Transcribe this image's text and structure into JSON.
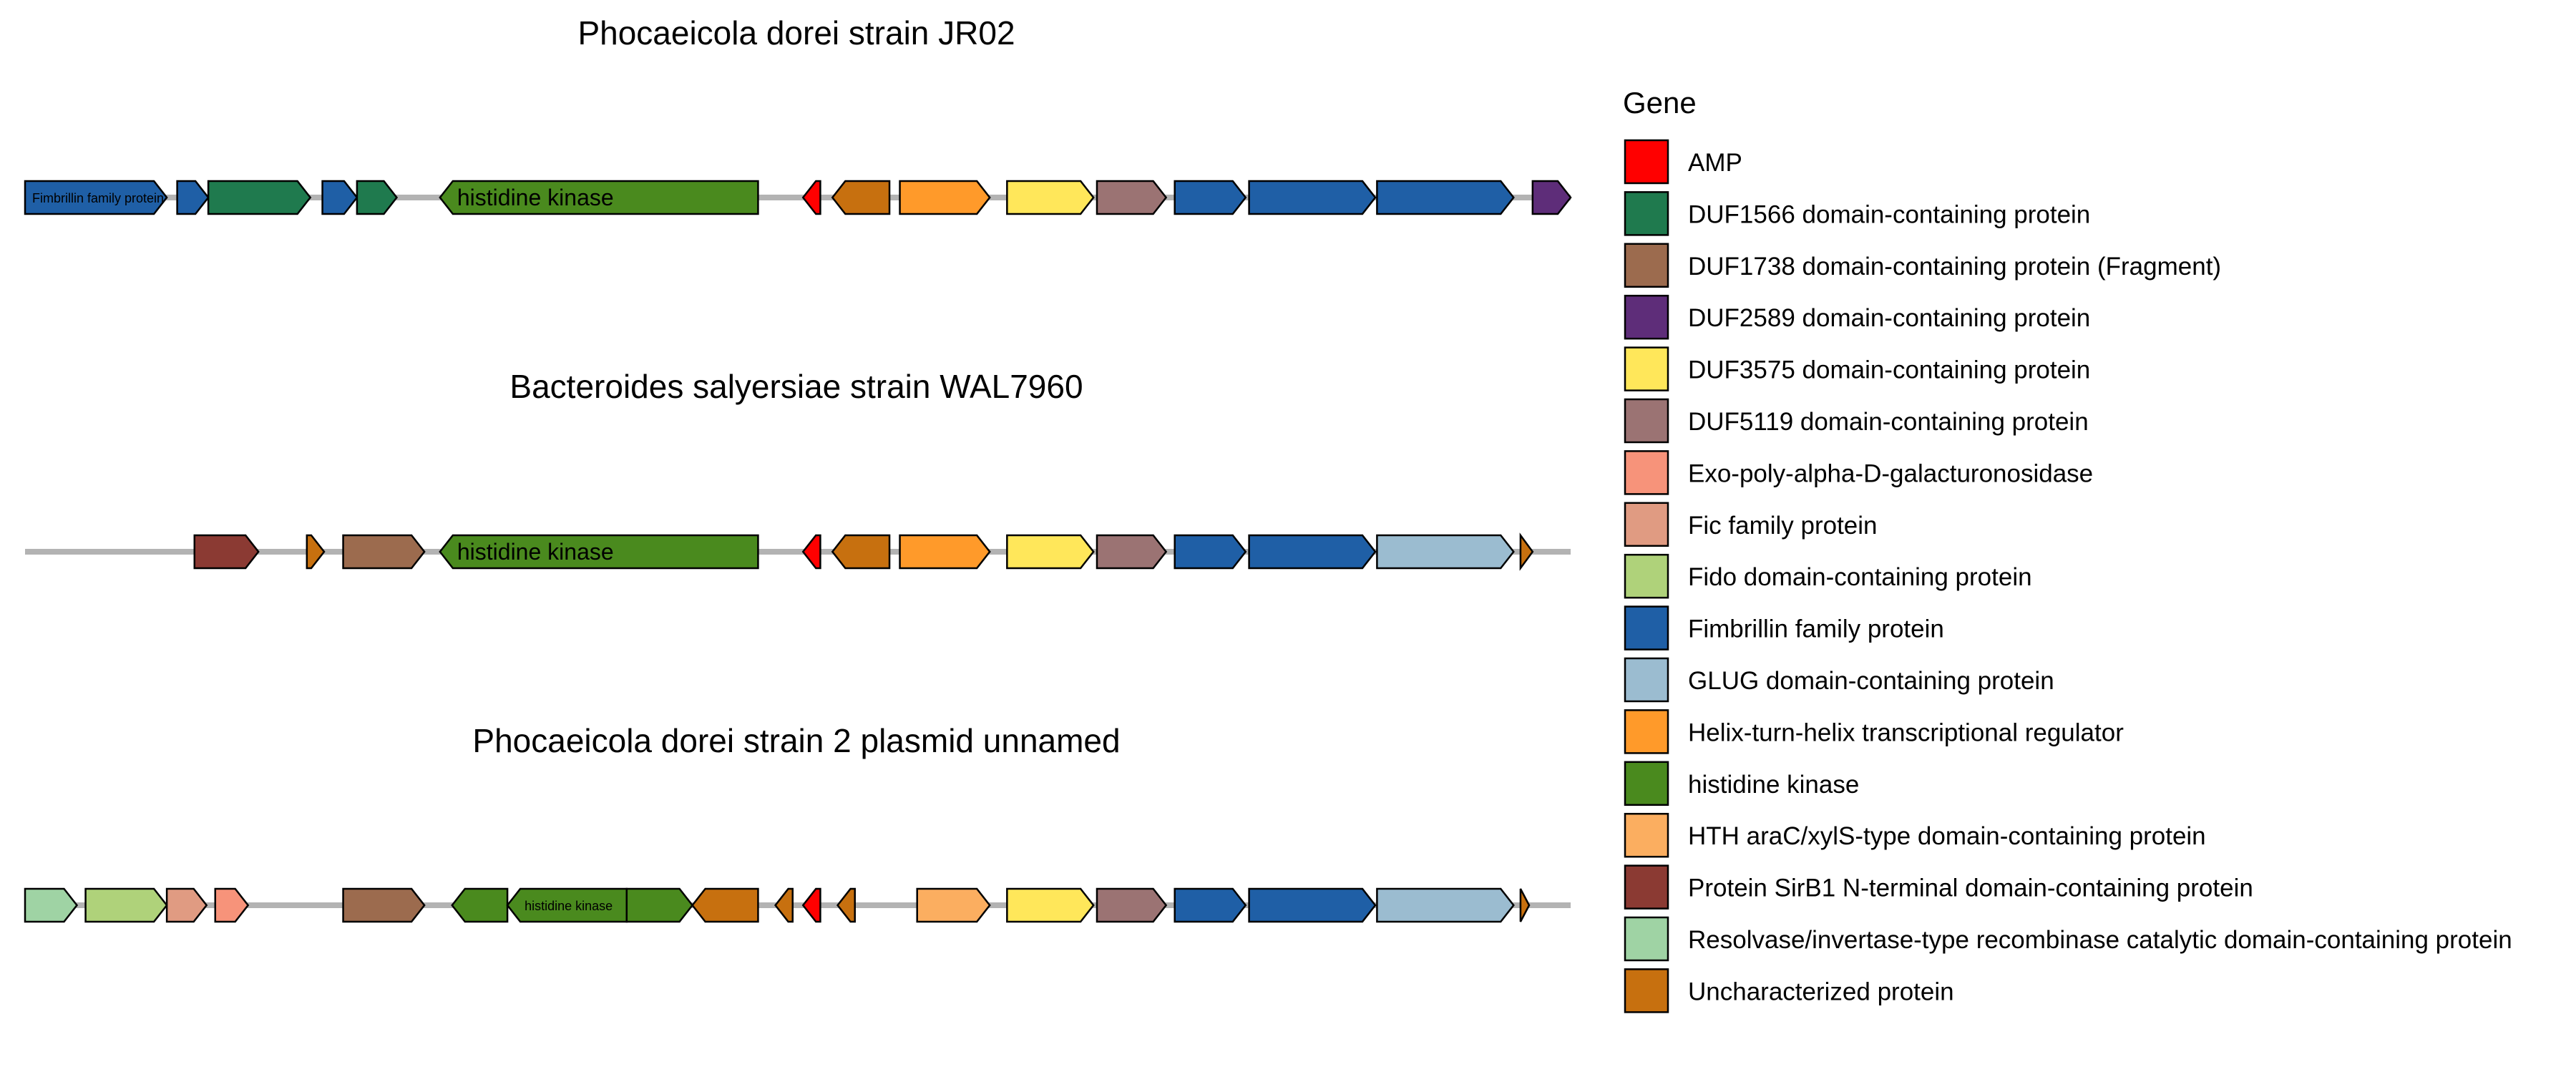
{
  "tracks": [
    {
      "title": "Phocaeicola dorei strain JR02",
      "genes": [
        {
          "start": 0.5,
          "end": 4.6,
          "strand": 1,
          "gene": "Fimbrillin family protein",
          "label": "Fimbrillin family protein",
          "label_size": "small"
        },
        {
          "start": 4.9,
          "end": 5.8,
          "strand": 1,
          "gene": "Fimbrillin family protein"
        },
        {
          "start": 5.8,
          "end": 8.75,
          "strand": 1,
          "gene": "DUF1566 domain-containing protein"
        },
        {
          "start": 9.1,
          "end": 10.1,
          "strand": 1,
          "gene": "Fimbrillin family protein"
        },
        {
          "start": 10.1,
          "end": 11.25,
          "strand": 1,
          "gene": "DUF1566 domain-containing protein"
        },
        {
          "start": 12.5,
          "end": 21.7,
          "strand": -1,
          "gene": "histidine kinase",
          "label": "histidine kinase",
          "label_size": "large"
        },
        {
          "start": 23.0,
          "end": 23.5,
          "strand": -1,
          "gene": "AMP"
        },
        {
          "start": 23.85,
          "end": 25.5,
          "strand": -1,
          "gene": "Uncharacterized protein"
        },
        {
          "start": 25.8,
          "end": 28.4,
          "strand": 1,
          "gene": "Helix-turn-helix transcriptional regulator"
        },
        {
          "start": 28.9,
          "end": 31.4,
          "strand": 1,
          "gene": "DUF3575 domain-containing protein"
        },
        {
          "start": 31.5,
          "end": 33.5,
          "strand": 1,
          "gene": "DUF5119 domain-containing protein"
        },
        {
          "start": 33.75,
          "end": 35.8,
          "strand": 1,
          "gene": "Fimbrillin family protein"
        },
        {
          "start": 35.9,
          "end": 39.55,
          "strand": 1,
          "gene": "Fimbrillin family protein"
        },
        {
          "start": 39.6,
          "end": 43.55,
          "strand": 1,
          "gene": "Fimbrillin family protein"
        },
        {
          "start": 44.1,
          "end": 45.2,
          "strand": 1,
          "gene": "DUF2589 domain-containing protein"
        }
      ]
    },
    {
      "title": "Bacteroides salyersiae strain WAL7960",
      "genes": [
        {
          "start": 5.4,
          "end": 7.25,
          "strand": 1,
          "gene": "Protein SirB1 N-terminal domain-containing protein"
        },
        {
          "start": 8.65,
          "end": 9.15,
          "strand": 1,
          "gene": "Uncharacterized protein"
        },
        {
          "start": 9.7,
          "end": 12.05,
          "strand": 1,
          "gene": "DUF1738 domain-containing protein (Fragment)"
        },
        {
          "start": 12.5,
          "end": 21.7,
          "strand": -1,
          "gene": "histidine kinase",
          "label": "histidine kinase",
          "label_size": "large"
        },
        {
          "start": 23.0,
          "end": 23.5,
          "strand": -1,
          "gene": "AMP"
        },
        {
          "start": 23.85,
          "end": 25.5,
          "strand": -1,
          "gene": "Uncharacterized protein"
        },
        {
          "start": 25.8,
          "end": 28.4,
          "strand": 1,
          "gene": "Helix-turn-helix transcriptional regulator"
        },
        {
          "start": 28.9,
          "end": 31.4,
          "strand": 1,
          "gene": "DUF3575 domain-containing protein"
        },
        {
          "start": 31.5,
          "end": 33.5,
          "strand": 1,
          "gene": "DUF5119 domain-containing protein"
        },
        {
          "start": 33.75,
          "end": 35.8,
          "strand": 1,
          "gene": "Fimbrillin family protein"
        },
        {
          "start": 35.9,
          "end": 39.55,
          "strand": 1,
          "gene": "Fimbrillin family protein"
        },
        {
          "start": 39.6,
          "end": 43.55,
          "strand": 1,
          "gene": "GLUG domain-containing protein"
        },
        {
          "start": 43.75,
          "end": 44.1,
          "strand": 1,
          "gene": "Uncharacterized protein"
        }
      ]
    },
    {
      "title": "Phocaeicola dorei strain 2 plasmid unnamed",
      "genes": [
        {
          "start": 0.5,
          "end": 2.0,
          "strand": 1,
          "gene": "Resolvase/invertase-type recombinase catalytic domain-containing protein"
        },
        {
          "start": 2.25,
          "end": 4.6,
          "strand": 1,
          "gene": "Fido domain-containing protein"
        },
        {
          "start": 4.6,
          "end": 5.75,
          "strand": 1,
          "gene": "Fic family protein"
        },
        {
          "start": 6.0,
          "end": 6.95,
          "strand": 1,
          "gene": "Exo-poly-alpha-D-galacturonosidase"
        },
        {
          "start": 9.7,
          "end": 12.05,
          "strand": 1,
          "gene": "DUF1738 domain-containing protein (Fragment)"
        },
        {
          "start": 12.85,
          "end": 14.45,
          "strand": -1,
          "gene": "histidine kinase"
        },
        {
          "start": 14.45,
          "end": 17.9,
          "strand": -1,
          "gene": "histidine kinase",
          "label": "histidine kinase",
          "label_size": "small"
        },
        {
          "start": 17.9,
          "end": 19.8,
          "strand": 1,
          "gene": "histidine kinase"
        },
        {
          "start": 19.8,
          "end": 21.7,
          "strand": -1,
          "gene": "Uncharacterized protein"
        },
        {
          "start": 22.2,
          "end": 22.7,
          "strand": -1,
          "gene": "Uncharacterized protein"
        },
        {
          "start": 23.0,
          "end": 23.5,
          "strand": -1,
          "gene": "AMP"
        },
        {
          "start": 24.0,
          "end": 24.5,
          "strand": -1,
          "gene": "Uncharacterized protein"
        },
        {
          "start": 26.3,
          "end": 28.4,
          "strand": 1,
          "gene": "HTH araC/xylS-type domain-containing protein"
        },
        {
          "start": 28.9,
          "end": 31.4,
          "strand": 1,
          "gene": "DUF3575 domain-containing protein"
        },
        {
          "start": 31.5,
          "end": 33.5,
          "strand": 1,
          "gene": "DUF5119 domain-containing protein"
        },
        {
          "start": 33.75,
          "end": 35.8,
          "strand": 1,
          "gene": "Fimbrillin family protein"
        },
        {
          "start": 35.9,
          "end": 39.55,
          "strand": 1,
          "gene": "Fimbrillin family protein"
        },
        {
          "start": 39.6,
          "end": 43.55,
          "strand": 1,
          "gene": "GLUG domain-containing protein"
        },
        {
          "start": 43.75,
          "end": 44.0,
          "strand": 1,
          "gene": "Uncharacterized protein"
        }
      ]
    }
  ],
  "legend": {
    "title": "Gene",
    "items": [
      {
        "label": "AMP",
        "color": "#FF0000"
      },
      {
        "label": "DUF1566 domain-containing protein",
        "color": "#1F7A4E"
      },
      {
        "label": "DUF1738 domain-containing protein (Fragment)",
        "color": "#9C6B4E"
      },
      {
        "label": "DUF2589 domain-containing protein",
        "color": "#5E2D79"
      },
      {
        "label": "DUF3575 domain-containing protein",
        "color": "#FFE75A"
      },
      {
        "label": "DUF5119 domain-containing protein",
        "color": "#9B7373"
      },
      {
        "label": "Exo-poly-alpha-D-galacturonosidase",
        "color": "#F7937A"
      },
      {
        "label": "Fic family protein",
        "color": "#E09B82"
      },
      {
        "label": "Fido domain-containing protein",
        "color": "#AFD27A"
      },
      {
        "label": "Fimbrillin family protein",
        "color": "#1F5FA6"
      },
      {
        "label": "GLUG domain-containing protein",
        "color": "#9BBCD0"
      },
      {
        "label": "Helix-turn-helix transcriptional regulator",
        "color": "#FF9A2A"
      },
      {
        "label": "histidine kinase",
        "color": "#4A8A1E"
      },
      {
        "label": "HTH araC/xylS-type domain-containing protein",
        "color": "#FBAE60"
      },
      {
        "label": "Protein SirB1 N-terminal domain-containing protein",
        "color": "#8B3A33"
      },
      {
        "label": "Resolvase/invertase-type recombinase catalytic domain-containing protein",
        "color": "#9FD3A4"
      },
      {
        "label": "Uncharacterized protein",
        "color": "#C7700F"
      }
    ]
  },
  "axis_range": [
    0.5,
    45.2
  ]
}
